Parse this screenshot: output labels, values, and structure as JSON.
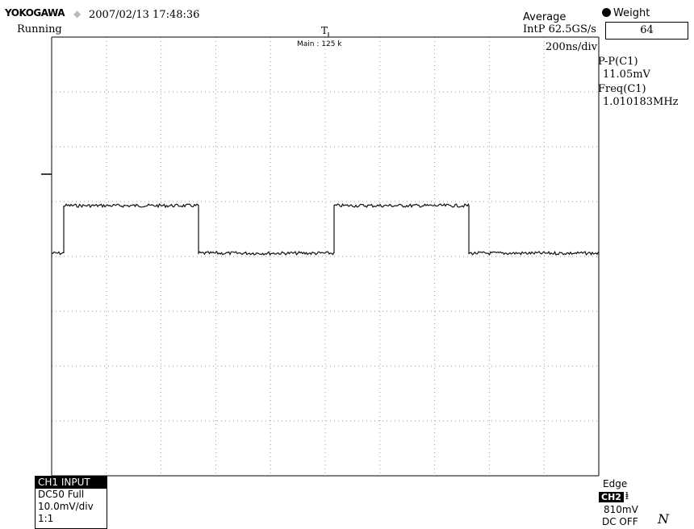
{
  "header": {
    "brand": "YOKOGAWA",
    "datetime": "2007/02/13 17:48:36",
    "status": "Running",
    "acquisition_mode": "Average",
    "sample_rate": "IntP  62.5GS/s",
    "main_zoom": "Main : 125 k",
    "timebase": "200ns/div",
    "trigger_marker": "T"
  },
  "weight": {
    "label": "Weight",
    "value": "64"
  },
  "measurements": [
    {
      "name": "P-P(C1)",
      "value": "11.05mV"
    },
    {
      "name": "Freq(C1)",
      "value": "1.010183MHz"
    }
  ],
  "channel": {
    "title": "CH1 INPUT",
    "coupling": "DC50 Full",
    "scale": "10.0mV/div",
    "probe": "1:1"
  },
  "trigger": {
    "mode": "Edge",
    "source": "CH2",
    "level": "810mV",
    "coupling": "DC OFF"
  },
  "colors": {
    "grid": "#9a9a9a",
    "trace": "#111111",
    "background": "#ffffff"
  }
}
